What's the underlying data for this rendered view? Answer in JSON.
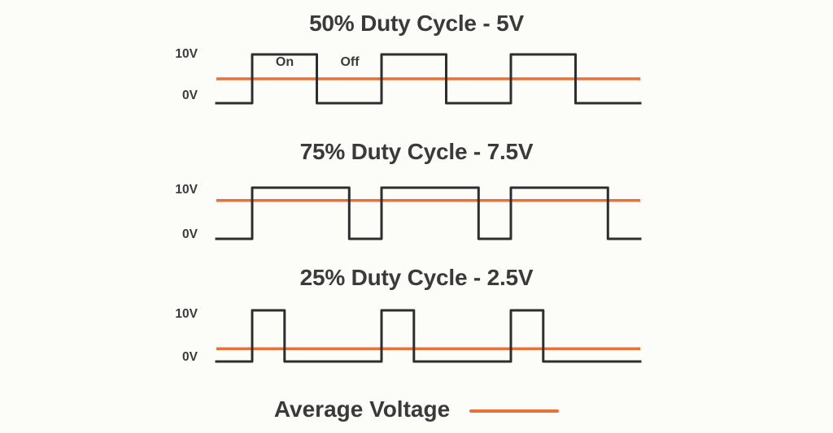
{
  "colors": {
    "background": "#FCFCF8",
    "wave": "#2E2E2E",
    "average_line": "#E8713A",
    "text": "#3A3A3A"
  },
  "legend": {
    "label": "Average Voltage",
    "swatch": "average-voltage-line"
  },
  "chart_data": [
    {
      "type": "line",
      "subtype": "pwm-square-wave",
      "title": "50% Duty Cycle - 5V",
      "duty_cycle_percent": 50,
      "average_voltage": 5,
      "high_voltage": 10,
      "low_voltage": 0,
      "cycles_shown": 3,
      "y_tick_labels": [
        "10V",
        "0V"
      ],
      "annotations": [
        {
          "label": "On",
          "meaning": "high portion of pulse"
        },
        {
          "label": "Off",
          "meaning": "low portion of pulse"
        }
      ],
      "average_line": {
        "value": 5,
        "color": "#E8713A"
      },
      "grid": false,
      "x_axis": "time (unlabeled)"
    },
    {
      "type": "line",
      "subtype": "pwm-square-wave",
      "title": "75% Duty Cycle - 7.5V",
      "duty_cycle_percent": 75,
      "average_voltage": 7.5,
      "high_voltage": 10,
      "low_voltage": 0,
      "cycles_shown": 3,
      "y_tick_labels": [
        "10V",
        "0V"
      ],
      "annotations": [],
      "average_line": {
        "value": 7.5,
        "color": "#E8713A"
      },
      "grid": false,
      "x_axis": "time (unlabeled)"
    },
    {
      "type": "line",
      "subtype": "pwm-square-wave",
      "title": "25% Duty Cycle - 2.5V",
      "duty_cycle_percent": 25,
      "average_voltage": 2.5,
      "high_voltage": 10,
      "low_voltage": 0,
      "cycles_shown": 3,
      "y_tick_labels": [
        "10V",
        "0V"
      ],
      "annotations": [],
      "average_line": {
        "value": 2.5,
        "color": "#E8713A"
      },
      "grid": false,
      "x_axis": "time (unlabeled)"
    }
  ]
}
